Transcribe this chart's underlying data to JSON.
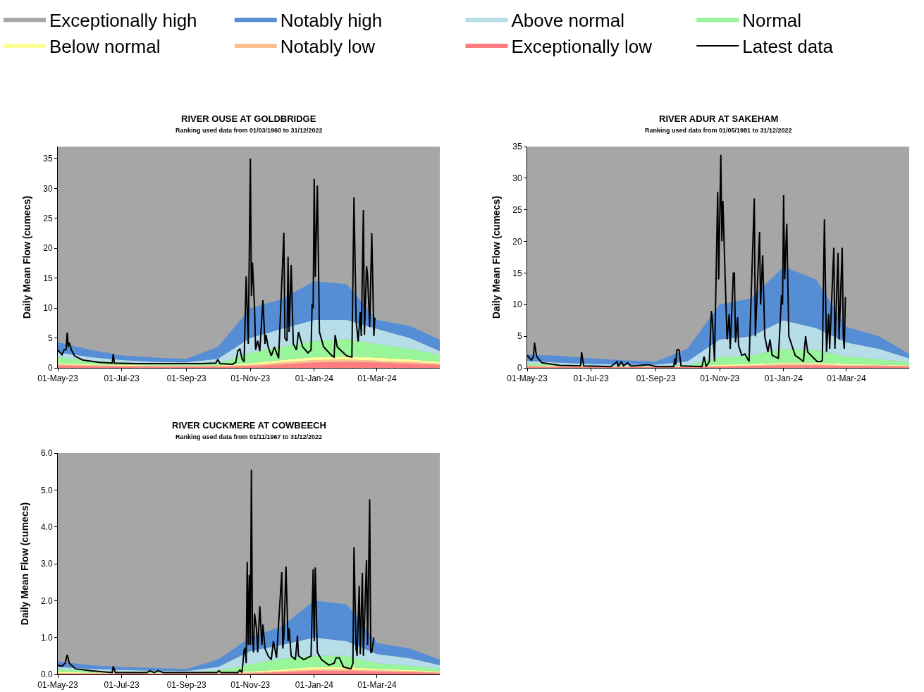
{
  "chart_data": [
    {
      "type": "area",
      "title": "RIVER OUSE AT GOLDBRIDGE",
      "subtitle": "Ranking used data from 01/03/1960 to 31/12/2022",
      "ylabel": "Daily Mean Flow (cumecs)",
      "stacked": true,
      "legend": "top",
      "xlim": [
        "2023-05-01",
        "2024-04-30"
      ],
      "ylim": [
        0,
        37
      ],
      "bands": [
        {
          "axis": "y",
          "from": 0,
          "to": 37,
          "label": "Exceptionally high",
          "color": "#a6a6a6"
        }
      ],
      "xticks": [
        {
          "value": "2023-05-01",
          "label": "01-May-23"
        },
        {
          "value": "2023-07-01",
          "label": "01-Jul-23"
        },
        {
          "value": "2023-09-01",
          "label": "01-Sep-23"
        },
        {
          "value": "2023-11-01",
          "label": "01-Nov-23"
        },
        {
          "value": "2024-01-01",
          "label": "01-Jan-24"
        },
        {
          "value": "2024-03-01",
          "label": "01-Mar-24"
        }
      ],
      "yticks": [
        0,
        5,
        10,
        15,
        20,
        25,
        30,
        35
      ],
      "x": [
        "2023-05-01",
        "2023-06-01",
        "2023-07-01",
        "2023-08-01",
        "2023-09-01",
        "2023-10-01",
        "2023-11-01",
        "2023-12-01",
        "2024-01-01",
        "2024-02-01",
        "2024-03-01",
        "2024-04-01",
        "2024-04-30"
      ],
      "series": [
        {
          "name": "Exceptionally low",
          "color": "#ff7c80",
          "values": [
            0.4,
            0.3,
            0.25,
            0.2,
            0.2,
            0.2,
            0.3,
            0.6,
            0.9,
            1.0,
            0.9,
            0.7,
            0.5
          ]
        },
        {
          "name": "Notably low",
          "color": "#fac090",
          "values": [
            0.2,
            0.15,
            0.1,
            0.1,
            0.1,
            0.1,
            0.2,
            0.3,
            0.4,
            0.4,
            0.3,
            0.3,
            0.2
          ]
        },
        {
          "name": "Below normal",
          "color": "#ffff99",
          "values": [
            0.2,
            0.15,
            0.15,
            0.1,
            0.1,
            0.1,
            0.3,
            0.4,
            0.5,
            0.5,
            0.5,
            0.4,
            0.3
          ]
        },
        {
          "name": "Normal",
          "color": "#99f599",
          "values": [
            1.0,
            0.6,
            0.4,
            0.3,
            0.2,
            0.4,
            1.7,
            2.2,
            2.7,
            2.9,
            2.3,
            1.8,
            1.2
          ]
        },
        {
          "name": "Above normal",
          "color": "#b7dde8",
          "values": [
            0.8,
            0.6,
            0.4,
            0.3,
            0.3,
            0.7,
            2.5,
            3.0,
            3.5,
            3.2,
            2.5,
            1.8,
            0.6
          ]
        },
        {
          "name": "Notably high",
          "color": "#558ed5",
          "values": [
            1.7,
            1.2,
            0.8,
            0.7,
            0.6,
            2.0,
            5.0,
            5.0,
            6.5,
            6.0,
            1.5,
            2.0,
            1.9
          ]
        },
        {
          "type": "line",
          "name": "Latest data",
          "color": "#000000",
          "x": [
            "2023-05-01",
            "2023-05-05",
            "2023-05-07",
            "2023-05-09",
            "2023-05-10",
            "2023-05-11",
            "2023-05-12",
            "2023-05-14",
            "2023-05-17",
            "2023-05-25",
            "2023-06-10",
            "2023-06-22",
            "2023-06-23",
            "2023-06-24",
            "2023-07-15",
            "2023-08-10",
            "2023-09-15",
            "2023-09-29",
            "2023-10-01",
            "2023-10-03",
            "2023-10-15",
            "2023-10-18",
            "2023-10-20",
            "2023-10-22",
            "2023-10-24",
            "2023-10-26",
            "2023-10-28",
            "2023-10-30",
            "2023-11-01",
            "2023-11-02",
            "2023-11-03",
            "2023-11-05",
            "2023-11-06",
            "2023-11-08",
            "2023-11-10",
            "2023-11-13",
            "2023-11-15",
            "2023-11-16",
            "2023-11-18",
            "2023-11-21",
            "2023-11-24",
            "2023-11-28",
            "2023-12-03",
            "2023-12-04",
            "2023-12-06",
            "2023-12-07",
            "2023-12-08",
            "2023-12-10",
            "2023-12-12",
            "2023-12-15",
            "2023-12-17",
            "2023-12-21",
            "2023-12-26",
            "2023-12-29",
            "2023-12-30",
            "2023-12-31",
            "2024-01-01",
            "2024-01-02",
            "2024-01-04",
            "2024-01-06",
            "2024-01-10",
            "2024-01-18",
            "2024-01-20",
            "2024-01-21",
            "2024-01-23",
            "2024-02-01",
            "2024-02-06",
            "2024-02-08",
            "2024-02-10",
            "2024-02-12",
            "2024-02-14",
            "2024-02-15",
            "2024-02-17",
            "2024-02-18",
            "2024-02-20",
            "2024-02-21",
            "2024-02-23",
            "2024-02-25",
            "2024-02-27",
            "2024-02-28"
          ],
          "values": [
            3.0,
            2.2,
            3.0,
            3.1,
            5.9,
            3.5,
            4.2,
            3.0,
            2.0,
            1.3,
            0.9,
            0.8,
            2.3,
            0.8,
            0.7,
            0.7,
            0.7,
            0.8,
            1.4,
            0.7,
            0.6,
            0.9,
            2.8,
            3.2,
            1.5,
            1.0,
            15.3,
            4.0,
            35.0,
            12.0,
            17.6,
            10.0,
            3.0,
            4.5,
            2.8,
            11.3,
            4.0,
            5.5,
            3.5,
            2.0,
            3.5,
            1.6,
            22.6,
            5.0,
            4.5,
            18.6,
            6.0,
            17.2,
            4.0,
            3.0,
            6.0,
            3.5,
            2.5,
            3.0,
            10.7,
            10.0,
            31.6,
            15.2,
            30.5,
            6.0,
            3.5,
            2.0,
            1.8,
            5.5,
            3.5,
            2.0,
            1.8,
            28.5,
            8.0,
            4.4,
            9.3,
            5.3,
            26.4,
            5.5,
            17.0,
            15.5,
            6.8,
            22.5,
            5.3,
            8.4
          ]
        }
      ]
    },
    {
      "type": "area",
      "title": "RIVER ADUR AT SAKEHAM",
      "subtitle": "Ranking used data from 01/05/1981 to 31/12/2022",
      "ylabel": "Daily Mean Flow (cumecs)",
      "stacked": true,
      "xlim": [
        "2023-05-01",
        "2024-04-30"
      ],
      "ylim": [
        0,
        35
      ],
      "bands": [
        {
          "axis": "y",
          "from": 0,
          "to": 35,
          "color": "#a6a6a6"
        }
      ],
      "xticks": [
        {
          "value": "2023-05-01",
          "label": "01-May-23"
        },
        {
          "value": "2023-07-01",
          "label": "01-Jul-23"
        },
        {
          "value": "2023-09-01",
          "label": "01-Sep-23"
        },
        {
          "value": "2023-11-01",
          "label": "01-Nov-23"
        },
        {
          "value": "2024-01-01",
          "label": "01-Jan-24"
        },
        {
          "value": "2024-03-01",
          "label": "01-Mar-24"
        }
      ],
      "yticks": [
        0,
        5,
        10,
        15,
        20,
        25,
        30,
        35
      ],
      "x": [
        "2023-05-01",
        "2023-06-01",
        "2023-07-01",
        "2023-08-01",
        "2023-09-01",
        "2023-10-01",
        "2023-11-01",
        "2023-12-01",
        "2024-01-01",
        "2024-02-01",
        "2024-03-01",
        "2024-04-01",
        "2024-04-30"
      ],
      "series": [
        {
          "color": "#ff7c80",
          "values": [
            0.2,
            0.15,
            0.1,
            0.1,
            0.1,
            0.1,
            0.2,
            0.3,
            0.4,
            0.4,
            0.3,
            0.3,
            0.2
          ]
        },
        {
          "color": "#fac090",
          "values": [
            0.1,
            0.05,
            0.05,
            0.05,
            0.05,
            0.05,
            0.1,
            0.1,
            0.2,
            0.2,
            0.1,
            0.1,
            0.1
          ]
        },
        {
          "color": "#ffff99",
          "values": [
            0.1,
            0.1,
            0.05,
            0.05,
            0.05,
            0.05,
            0.2,
            0.2,
            0.2,
            0.2,
            0.2,
            0.1,
            0.1
          ]
        },
        {
          "color": "#99f599",
          "values": [
            0.3,
            0.2,
            0.15,
            0.1,
            0.1,
            0.2,
            1.2,
            1.4,
            2.2,
            2.0,
            1.2,
            0.9,
            0.5
          ]
        },
        {
          "color": "#b7dde8",
          "values": [
            0.4,
            0.3,
            0.25,
            0.2,
            0.2,
            0.6,
            2.8,
            3.0,
            4.5,
            3.5,
            2.2,
            1.6,
            0.6
          ]
        },
        {
          "color": "#558ed5",
          "values": [
            1.0,
            1.1,
            0.9,
            0.7,
            0.5,
            2.0,
            5.5,
            6.0,
            8.5,
            7.7,
            2.5,
            2.0,
            0.7
          ]
        },
        {
          "type": "line",
          "color": "#000000",
          "x": [
            "2023-05-01",
            "2023-05-05",
            "2023-05-07",
            "2023-05-08",
            "2023-05-10",
            "2023-05-15",
            "2023-06-01",
            "2023-06-21",
            "2023-06-22",
            "2023-06-24",
            "2023-07-20",
            "2023-07-26",
            "2023-07-27",
            "2023-07-30",
            "2023-08-01",
            "2023-08-05",
            "2023-08-08",
            "2023-08-12",
            "2023-08-25",
            "2023-09-01",
            "2023-09-18",
            "2023-09-19",
            "2023-09-20",
            "2023-09-21",
            "2023-09-23",
            "2023-09-25",
            "2023-10-15",
            "2023-10-17",
            "2023-10-19",
            "2023-10-22",
            "2023-10-24",
            "2023-10-25",
            "2023-10-27",
            "2023-10-30",
            "2023-10-31",
            "2023-11-02",
            "2023-11-03",
            "2023-11-04",
            "2023-11-06",
            "2023-11-08",
            "2023-11-10",
            "2023-11-11",
            "2023-11-14",
            "2023-11-15",
            "2023-11-16",
            "2023-11-18",
            "2023-11-19",
            "2023-11-22",
            "2023-11-25",
            "2023-11-29",
            "2023-12-04",
            "2023-12-05",
            "2023-12-09",
            "2023-12-10",
            "2023-12-12",
            "2023-12-14",
            "2023-12-17",
            "2023-12-19",
            "2023-12-21",
            "2023-12-27",
            "2023-12-30",
            "2023-12-31",
            "2024-01-01",
            "2024-01-02",
            "2024-01-04",
            "2024-01-06",
            "2024-01-12",
            "2024-01-20",
            "2024-01-22",
            "2024-01-24",
            "2024-02-02",
            "2024-02-06",
            "2024-02-07",
            "2024-02-09",
            "2024-02-11",
            "2024-02-13",
            "2024-02-14",
            "2024-02-18",
            "2024-02-19",
            "2024-02-22",
            "2024-02-23",
            "2024-02-26",
            "2024-02-27",
            "2024-02-28",
            "2024-02-29"
          ],
          "values": [
            2.0,
            1.2,
            1.8,
            4.0,
            1.8,
            0.8,
            0.4,
            0.3,
            2.5,
            0.3,
            0.2,
            1.0,
            0.2,
            1.0,
            0.3,
            0.8,
            0.3,
            0.3,
            0.5,
            0.2,
            0.2,
            1.5,
            0.5,
            2.8,
            2.9,
            0.3,
            0.2,
            1.8,
            0.2,
            1.0,
            9.0,
            7.5,
            1.0,
            27.8,
            14.0,
            33.7,
            20.0,
            26.4,
            15.0,
            4.5,
            8.5,
            3.0,
            15.0,
            15.0,
            4.0,
            8.0,
            3.5,
            2.0,
            2.2,
            1.0,
            26.8,
            5.0,
            21.5,
            10.0,
            17.8,
            5.0,
            2.5,
            4.5,
            2.0,
            1.5,
            11.5,
            10.0,
            27.3,
            14.0,
            22.8,
            5.0,
            2.0,
            1.0,
            5.0,
            2.5,
            1.0,
            1.0,
            1.2,
            23.5,
            2.5,
            8.5,
            3.0,
            19.0,
            3.0,
            18.2,
            4.5,
            19.0,
            5.0,
            3.0,
            11.2
          ]
        }
      ]
    },
    {
      "type": "area",
      "title": "RIVER CUCKMERE AT COWBEECH",
      "subtitle": "Ranking used data from 01/11/1967 to 31/12/2022",
      "ylabel": "Daily Mean Flow (cumecs)",
      "stacked": true,
      "xlim": [
        "2023-05-01",
        "2024-04-30"
      ],
      "ylim": [
        0,
        6
      ],
      "bands": [
        {
          "axis": "y",
          "from": 0,
          "to": 6,
          "color": "#a6a6a6"
        }
      ],
      "xticks": [
        {
          "value": "2023-05-01",
          "label": "01-May-23"
        },
        {
          "value": "2023-07-01",
          "label": "01-Jul-23"
        },
        {
          "value": "2023-09-01",
          "label": "01-Sep-23"
        },
        {
          "value": "2023-11-01",
          "label": "01-Nov-23"
        },
        {
          "value": "2024-01-01",
          "label": "01-Jan-24"
        },
        {
          "value": "2024-03-01",
          "label": "01-Mar-24"
        }
      ],
      "yticks": [
        {
          "value": 0,
          "label": "0.0"
        },
        {
          "value": 1,
          "label": "1.0"
        },
        {
          "value": 2,
          "label": "2.0"
        },
        {
          "value": 3,
          "label": "3.0"
        },
        {
          "value": 4,
          "label": "4.0"
        },
        {
          "value": 5,
          "label": "5.0"
        },
        {
          "value": 6,
          "label": "6.0"
        }
      ],
      "x": [
        "2023-05-01",
        "2023-06-01",
        "2023-07-01",
        "2023-08-01",
        "2023-09-01",
        "2023-10-01",
        "2023-11-01",
        "2023-12-01",
        "2024-01-01",
        "2024-02-01",
        "2024-03-01",
        "2024-04-01",
        "2024-04-30"
      ],
      "series": [
        {
          "color": "#ff7c80",
          "values": [
            0.02,
            0.02,
            0.02,
            0.02,
            0.02,
            0.02,
            0.03,
            0.06,
            0.1,
            0.1,
            0.08,
            0.06,
            0.04
          ]
        },
        {
          "color": "#fac090",
          "values": [
            0.02,
            0.01,
            0.01,
            0.01,
            0.01,
            0.01,
            0.02,
            0.03,
            0.04,
            0.04,
            0.03,
            0.03,
            0.02
          ]
        },
        {
          "color": "#ffff99",
          "values": [
            0.03,
            0.02,
            0.02,
            0.01,
            0.01,
            0.02,
            0.03,
            0.04,
            0.06,
            0.06,
            0.04,
            0.03,
            0.02
          ]
        },
        {
          "color": "#99f599",
          "values": [
            0.08,
            0.05,
            0.03,
            0.03,
            0.02,
            0.05,
            0.2,
            0.3,
            0.3,
            0.3,
            0.15,
            0.12,
            0.08
          ]
        },
        {
          "color": "#b7dde8",
          "values": [
            0.05,
            0.05,
            0.04,
            0.03,
            0.03,
            0.1,
            0.35,
            0.37,
            0.5,
            0.4,
            0.25,
            0.2,
            0.09
          ]
        },
        {
          "color": "#558ed5",
          "values": [
            0.15,
            0.1,
            0.08,
            0.07,
            0.06,
            0.2,
            0.37,
            0.5,
            1.0,
            1.0,
            0.3,
            0.26,
            0.15
          ]
        },
        {
          "type": "line",
          "color": "#000000",
          "x": [
            "2023-05-01",
            "2023-05-05",
            "2023-05-08",
            "2023-05-10",
            "2023-05-12",
            "2023-05-18",
            "2023-06-01",
            "2023-06-22",
            "2023-06-23",
            "2023-06-25",
            "2023-07-25",
            "2023-07-28",
            "2023-08-01",
            "2023-08-05",
            "2023-08-10",
            "2023-09-15",
            "2023-09-30",
            "2023-10-02",
            "2023-10-04",
            "2023-10-20",
            "2023-10-22",
            "2023-10-24",
            "2023-10-26",
            "2023-10-27",
            "2023-10-28",
            "2023-10-29",
            "2023-10-30",
            "2023-10-31",
            "2023-11-01",
            "2023-11-02",
            "2023-11-03",
            "2023-11-04",
            "2023-11-05",
            "2023-11-07",
            "2023-11-08",
            "2023-11-10",
            "2023-11-12",
            "2023-11-13",
            "2023-11-15",
            "2023-11-18",
            "2023-11-21",
            "2023-11-23",
            "2023-11-26",
            "2023-12-01",
            "2023-12-02",
            "2023-12-03",
            "2023-12-05",
            "2023-12-07",
            "2023-12-08",
            "2023-12-10",
            "2023-12-14",
            "2023-12-16",
            "2023-12-17",
            "2023-12-22",
            "2023-12-29",
            "2023-12-31",
            "2024-01-01",
            "2024-01-02",
            "2024-01-04",
            "2024-01-08",
            "2024-01-15",
            "2024-01-20",
            "2024-01-22",
            "2024-01-25",
            "2024-01-29",
            "2024-02-05",
            "2024-02-07",
            "2024-02-08",
            "2024-02-10",
            "2024-02-11",
            "2024-02-13",
            "2024-02-14",
            "2024-02-16",
            "2024-02-17",
            "2024-02-20",
            "2024-02-21",
            "2024-02-23",
            "2024-02-24",
            "2024-02-25",
            "2024-02-27"
          ],
          "values": [
            0.25,
            0.22,
            0.3,
            0.53,
            0.3,
            0.15,
            0.1,
            0.05,
            0.22,
            0.05,
            0.05,
            0.1,
            0.05,
            0.1,
            0.05,
            0.05,
            0.05,
            0.1,
            0.05,
            0.05,
            0.12,
            0.05,
            0.65,
            0.72,
            0.3,
            3.05,
            0.8,
            2.7,
            0.8,
            5.55,
            1.0,
            0.6,
            1.65,
            1.2,
            0.6,
            1.85,
            0.8,
            1.35,
            0.7,
            0.5,
            0.4,
            0.9,
            0.45,
            2.77,
            0.7,
            1.0,
            2.93,
            0.9,
            1.25,
            0.5,
            0.4,
            1.05,
            0.5,
            0.4,
            0.5,
            2.85,
            0.9,
            2.9,
            0.6,
            0.4,
            0.25,
            0.3,
            0.45,
            0.45,
            0.2,
            0.15,
            0.3,
            3.45,
            0.7,
            0.5,
            2.4,
            0.55,
            2.75,
            0.5,
            3.1,
            0.8,
            4.75,
            0.6,
            0.6,
            1.0
          ]
        }
      ]
    }
  ]
}
